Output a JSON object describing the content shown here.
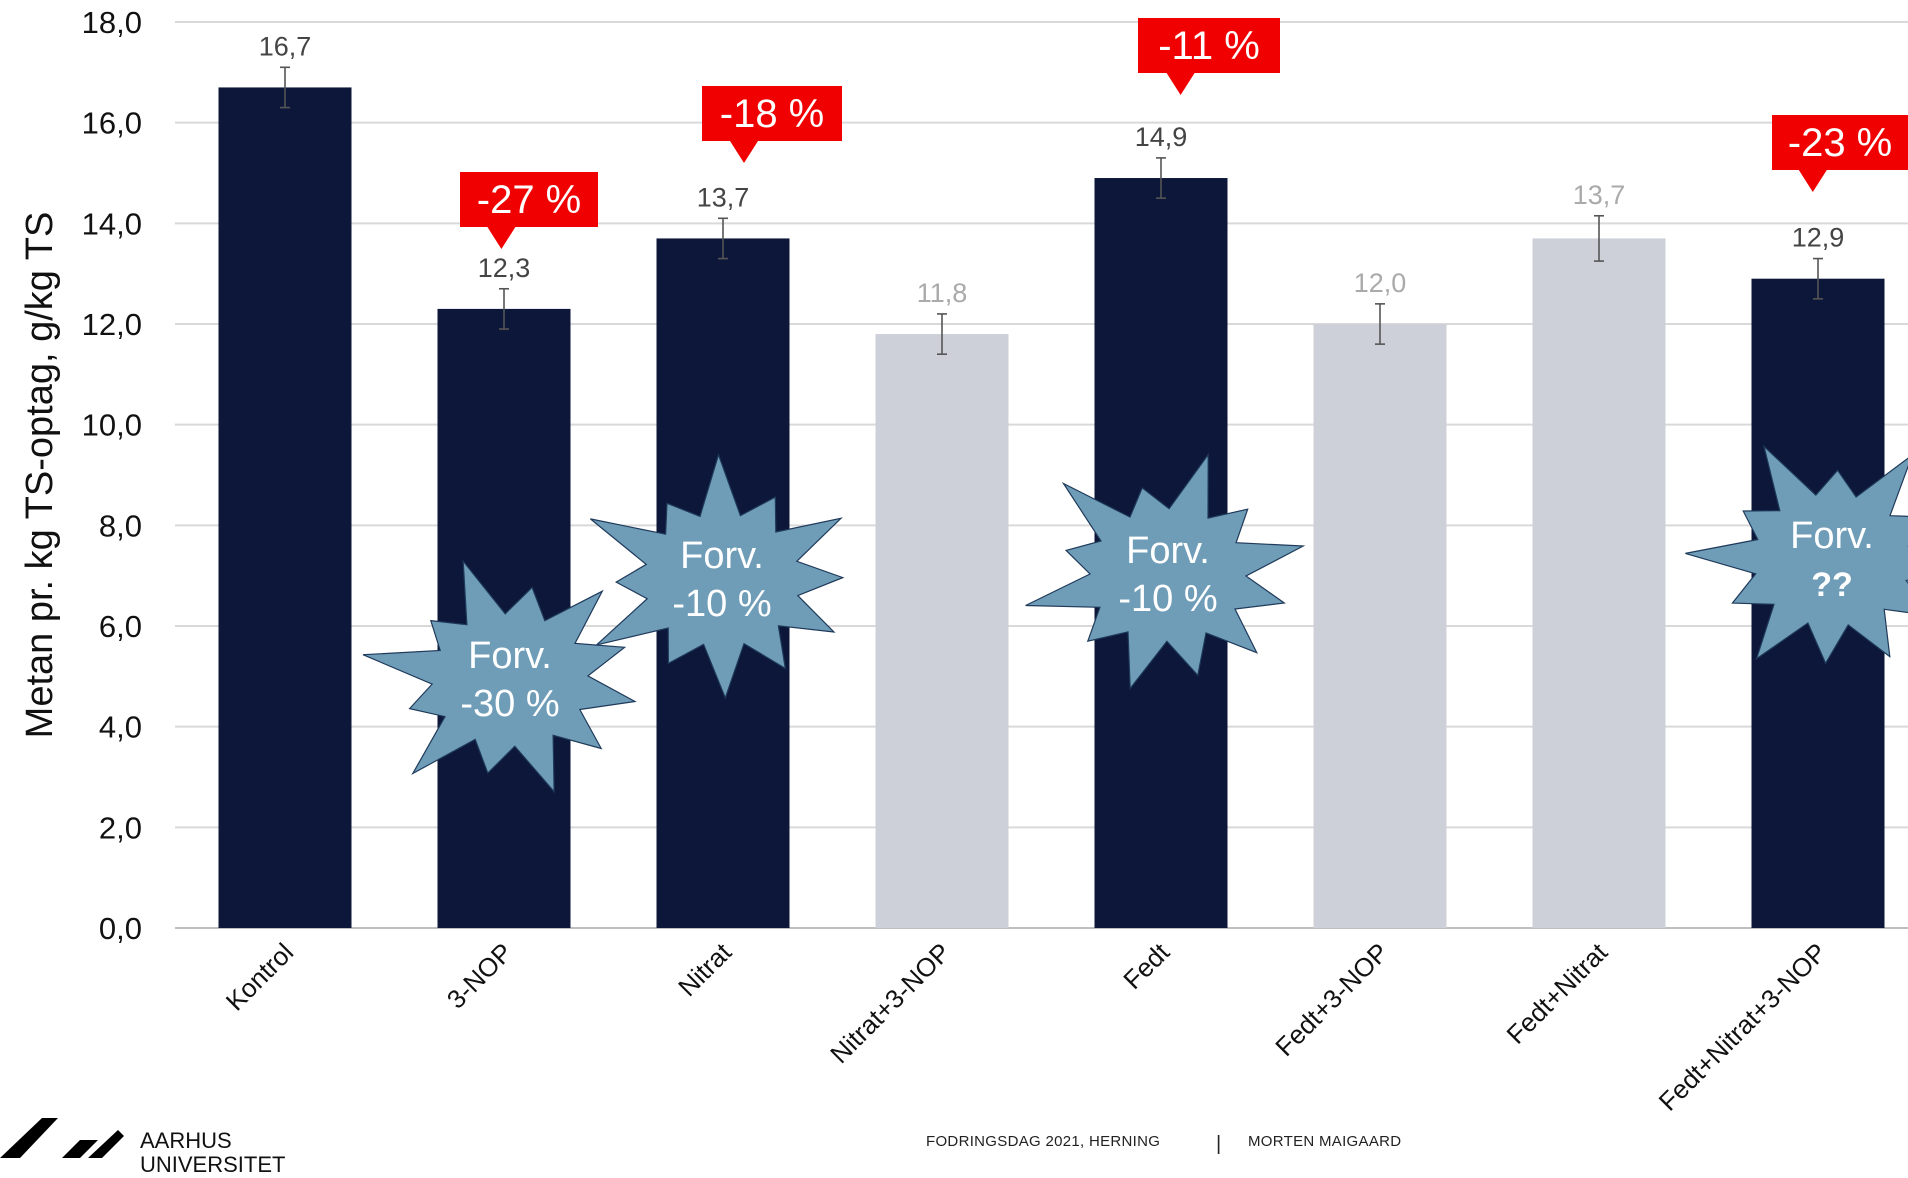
{
  "chart_data": {
    "type": "bar",
    "ylabel": "Metan pr. kg TS-optag, g/kg TS",
    "ylim": [
      0,
      18
    ],
    "yticks": [
      "0,0",
      "2,0",
      "4,0",
      "6,0",
      "8,0",
      "10,0",
      "12,0",
      "14,0",
      "16,0",
      "18,0"
    ],
    "grid": true,
    "categories": [
      "Kontrol",
      "3-NOP",
      "Nitrat",
      "Nitrat+3-NOP",
      "Fedt",
      "Fedt+3-NOP",
      "Fedt+Nitrat",
      "Fedt+Nitrat+3-NOP"
    ],
    "values": [
      16.7,
      12.3,
      13.7,
      11.8,
      14.9,
      12.0,
      13.7,
      12.9
    ],
    "value_labels": [
      "16,7",
      "12,3",
      "13,7",
      "11,8",
      "14,9",
      "12,0",
      "13,7",
      "12,9"
    ],
    "error": [
      0.4,
      0.4,
      0.4,
      0.4,
      0.4,
      0.4,
      0.45,
      0.4
    ],
    "highlighted": [
      true,
      true,
      true,
      false,
      true,
      false,
      false,
      true
    ],
    "colors": {
      "highlight": "#0c1739",
      "muted": "#cdd0d9",
      "label_dark": "#444444",
      "label_muted": "#aaaaaa",
      "callout": "#f00000",
      "burst": "#6f9db8",
      "grid": "#d9d9d9"
    },
    "callouts": [
      {
        "category": "3-NOP",
        "text": "-27 %"
      },
      {
        "category": "Nitrat",
        "text": "-18 %"
      },
      {
        "category": "Fedt",
        "text": "-11 %"
      },
      {
        "category": "Fedt+Nitrat+3-NOP",
        "text": "-23 %"
      }
    ],
    "bursts": [
      {
        "category": "3-NOP",
        "line1": "Forv.",
        "line2": "-30 %"
      },
      {
        "category": "Nitrat",
        "line1": "Forv.",
        "line2": "-10 %"
      },
      {
        "category": "Fedt",
        "line1": "Forv.",
        "line2": "-10 %"
      },
      {
        "category": "Fedt+Nitrat+3-NOP",
        "line1": "Forv.",
        "line2": "??"
      }
    ]
  },
  "footer": {
    "event": "FODRINGSDAG 2021, HERNING",
    "separator": "|",
    "author": "MORTEN MAIGAARD"
  },
  "logo": {
    "line1": "AARHUS",
    "line2": "UNIVERSITET"
  }
}
